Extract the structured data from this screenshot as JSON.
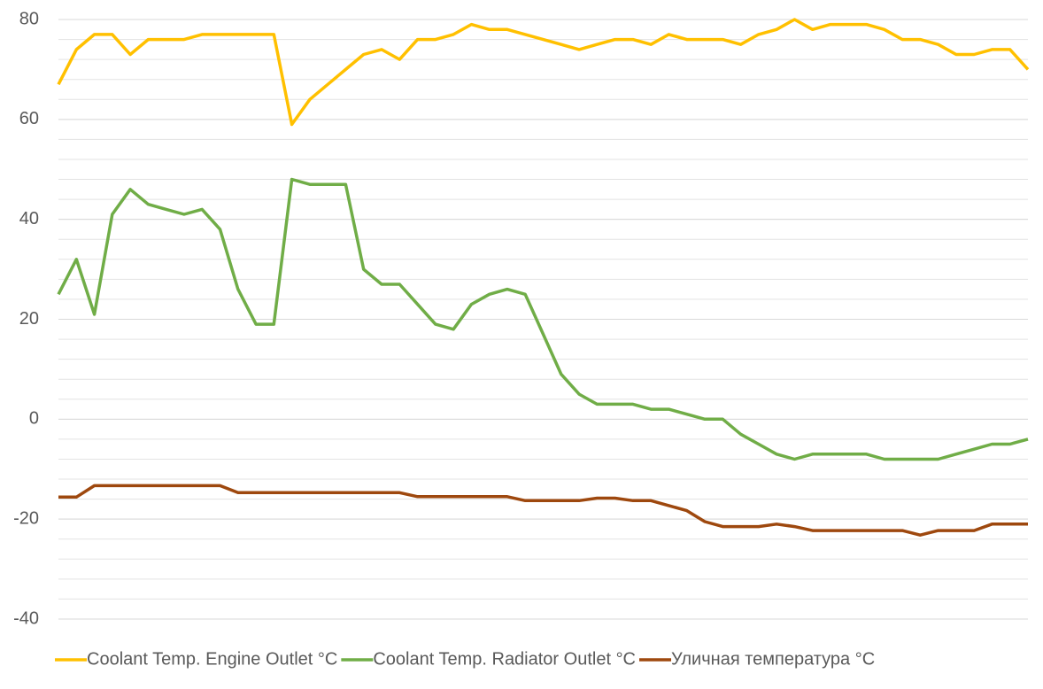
{
  "chart_data": {
    "type": "line",
    "ylim": [
      -40,
      80
    ],
    "yticks": [
      -40,
      -20,
      0,
      20,
      40,
      60,
      80
    ],
    "ygrid": [
      -40,
      -36,
      -32,
      -28,
      -24,
      -20,
      -16,
      -12,
      -8,
      -4,
      0,
      4,
      8,
      12,
      16,
      20,
      24,
      28,
      32,
      36,
      40,
      44,
      48,
      52,
      56,
      60,
      64,
      68,
      72,
      76,
      80
    ],
    "grid": true,
    "legend": "bottom",
    "series": [
      {
        "name": "Coolant Temp. Engine Outlet °C",
        "color": "#ffc000",
        "values": [
          67,
          74,
          77,
          77,
          73,
          76,
          76,
          76,
          77,
          77,
          77,
          77,
          77,
          59,
          64,
          67,
          70,
          73,
          74,
          72,
          76,
          76,
          77,
          79,
          78,
          78,
          77,
          76,
          75,
          74,
          75,
          76,
          76,
          75,
          77,
          76,
          76,
          76,
          75,
          77,
          78,
          80,
          78,
          79,
          79,
          79,
          78,
          76,
          76,
          75,
          73,
          73,
          74,
          74,
          70
        ]
      },
      {
        "name": "Coolant Temp. Radiator Outlet °C",
        "color": "#70ad47",
        "values": [
          25,
          32,
          21,
          41,
          46,
          43,
          42,
          41,
          42,
          38,
          26,
          19,
          19,
          48,
          47,
          47,
          47,
          30,
          27,
          27,
          23,
          19,
          18,
          23,
          25,
          26,
          25,
          17,
          9,
          5,
          3,
          3,
          3,
          2,
          2,
          1,
          0,
          0,
          -3,
          -5,
          -7,
          -8,
          -7,
          -7,
          -7,
          -7,
          -8,
          -8,
          -8,
          -8,
          -7,
          -6,
          -5,
          -5,
          -4
        ]
      },
      {
        "name": "Уличная температура °C",
        "color": "#9e480e",
        "values": [
          -15.6,
          -15.6,
          -13.3,
          -13.3,
          -13.3,
          -13.3,
          -13.3,
          -13.3,
          -13.3,
          -13.3,
          -14.7,
          -14.7,
          -14.7,
          -14.7,
          -14.7,
          -14.7,
          -14.7,
          -14.7,
          -14.7,
          -14.7,
          -15.5,
          -15.5,
          -15.5,
          -15.5,
          -15.5,
          -15.5,
          -16.3,
          -16.3,
          -16.3,
          -16.3,
          -15.8,
          -15.8,
          -16.3,
          -16.3,
          -17.3,
          -18.3,
          -20.5,
          -21.5,
          -21.5,
          -21.5,
          -21,
          -21.5,
          -22.3,
          -22.3,
          -22.3,
          -22.3,
          -22.3,
          -22.3,
          -23.2,
          -22.3,
          -22.3,
          -22.3,
          -21,
          -21,
          -21
        ]
      }
    ]
  }
}
